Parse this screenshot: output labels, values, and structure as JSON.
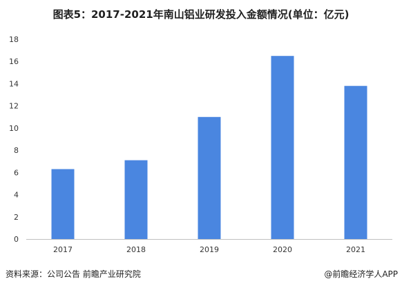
{
  "title": "图表5：2017-2021年南山铝业研发投入金额情况(单位：亿元)",
  "footer": {
    "source": "资料来源：公司公告 前瞻产业研究院",
    "credit": "@前瞻经济学人APP"
  },
  "colors": {
    "bar": "#4a86e0",
    "axis": "#bfbfbf"
  },
  "chart_data": {
    "type": "bar",
    "categories": [
      "2017",
      "2018",
      "2019",
      "2020",
      "2021"
    ],
    "values": [
      6.3,
      7.1,
      11.0,
      16.5,
      13.8
    ],
    "ylim": [
      0,
      18
    ],
    "yticks": [
      0,
      2,
      4,
      6,
      8,
      10,
      12,
      14,
      16,
      18
    ],
    "grid": false,
    "xlabel": "",
    "ylabel": ""
  }
}
